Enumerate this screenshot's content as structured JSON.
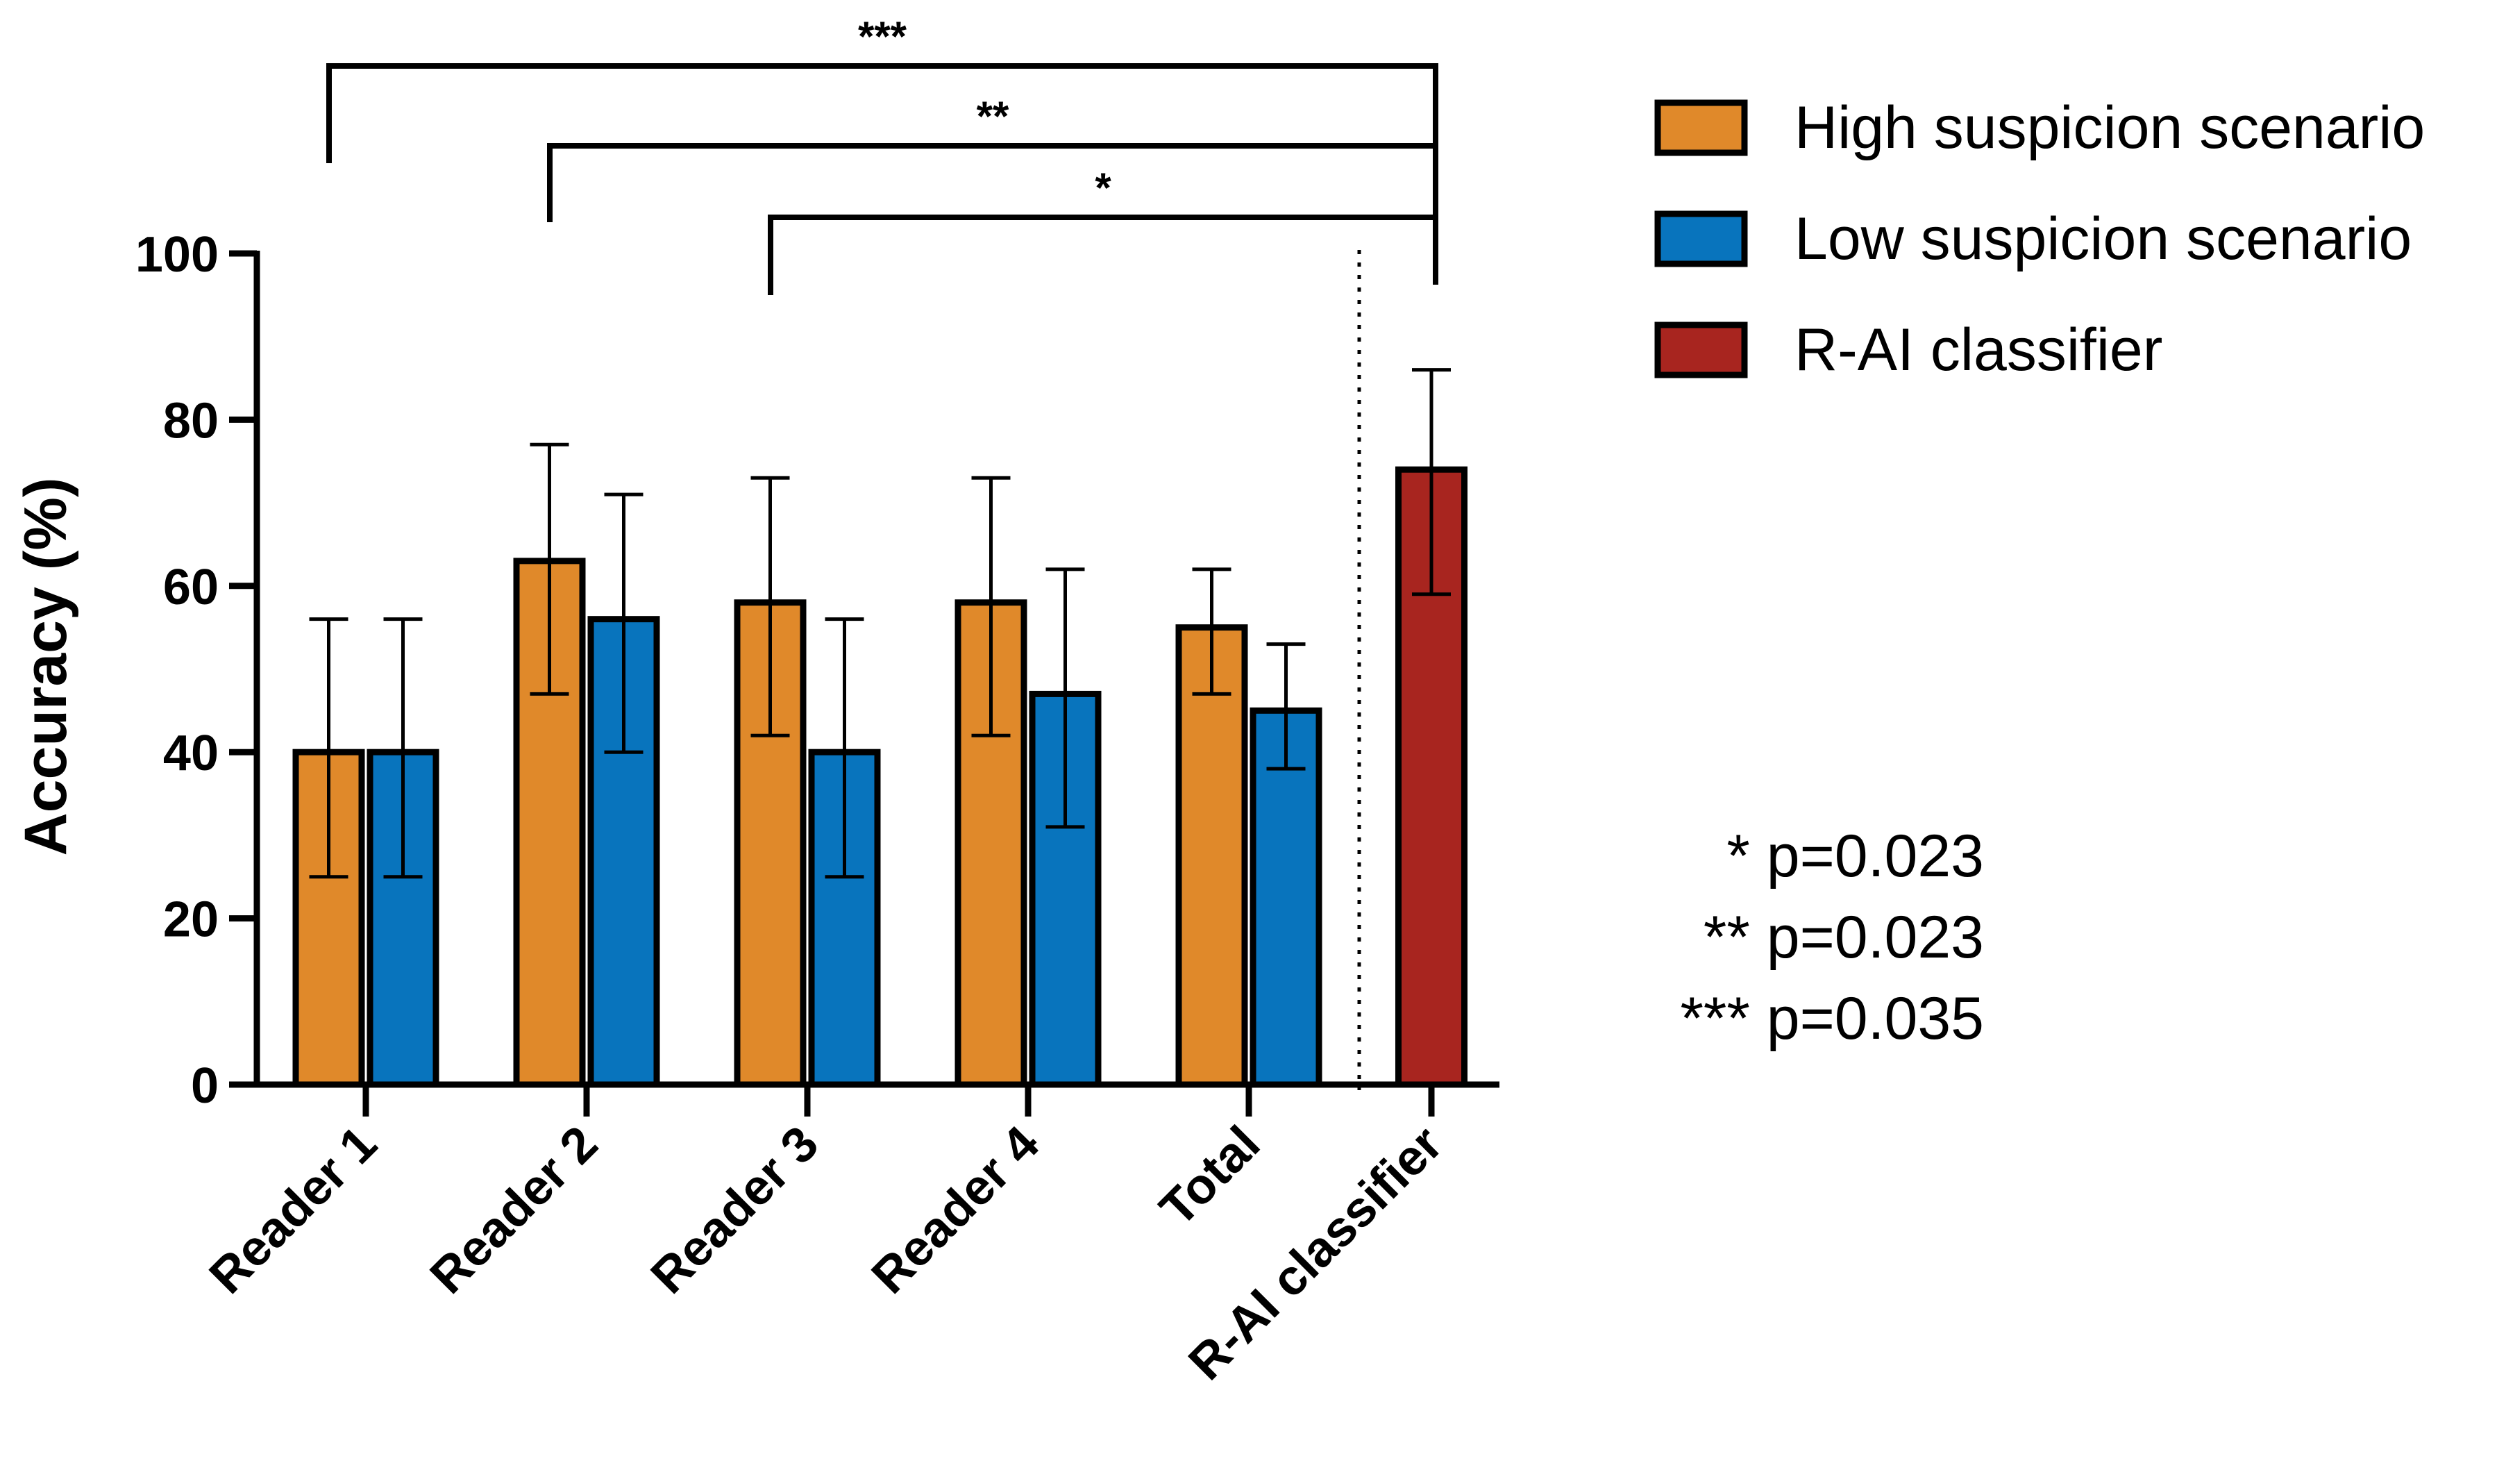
{
  "chart_data": {
    "type": "bar",
    "ylabel": "Accuracy (%)",
    "xlabel": "",
    "ylim": [
      0,
      100
    ],
    "yticks": [
      0,
      20,
      40,
      60,
      80,
      100
    ],
    "categories": [
      "Reader 1",
      "Reader 2",
      "Reader 3",
      "Reader 4",
      "Total",
      "R-AI classifier"
    ],
    "series": [
      {
        "name": "High suspicion scenario",
        "color": "#E0892A",
        "values": [
          40,
          63,
          58,
          58,
          55,
          null
        ],
        "err_low": [
          25,
          47,
          42,
          42,
          47,
          null
        ],
        "err_high": [
          56,
          77,
          73,
          73,
          62,
          null
        ]
      },
      {
        "name": "Low suspicion scenario",
        "color": "#0874BD",
        "values": [
          40,
          56,
          40,
          47,
          45,
          null
        ],
        "err_low": [
          25,
          40,
          25,
          31,
          38,
          null
        ],
        "err_high": [
          56,
          71,
          56,
          62,
          53,
          null
        ]
      },
      {
        "name": "R-AI classifier",
        "color": "#A8251F",
        "values": [
          null,
          null,
          null,
          null,
          null,
          74
        ],
        "err_low": [
          null,
          null,
          null,
          null,
          null,
          59
        ],
        "err_high": [
          null,
          null,
          null,
          null,
          null,
          86
        ]
      }
    ],
    "legend_position": "top-right",
    "significance": [
      {
        "stars": "***",
        "from": "Reader 1",
        "to": "R-AI classifier",
        "label": "*** p=0.035"
      },
      {
        "stars": "**",
        "from": "Reader 2",
        "to": "R-AI classifier",
        "label": "** p=0.023"
      },
      {
        "stars": "*",
        "from": "Reader 3",
        "to": "R-AI classifier",
        "label": "* p=0.023"
      }
    ]
  }
}
